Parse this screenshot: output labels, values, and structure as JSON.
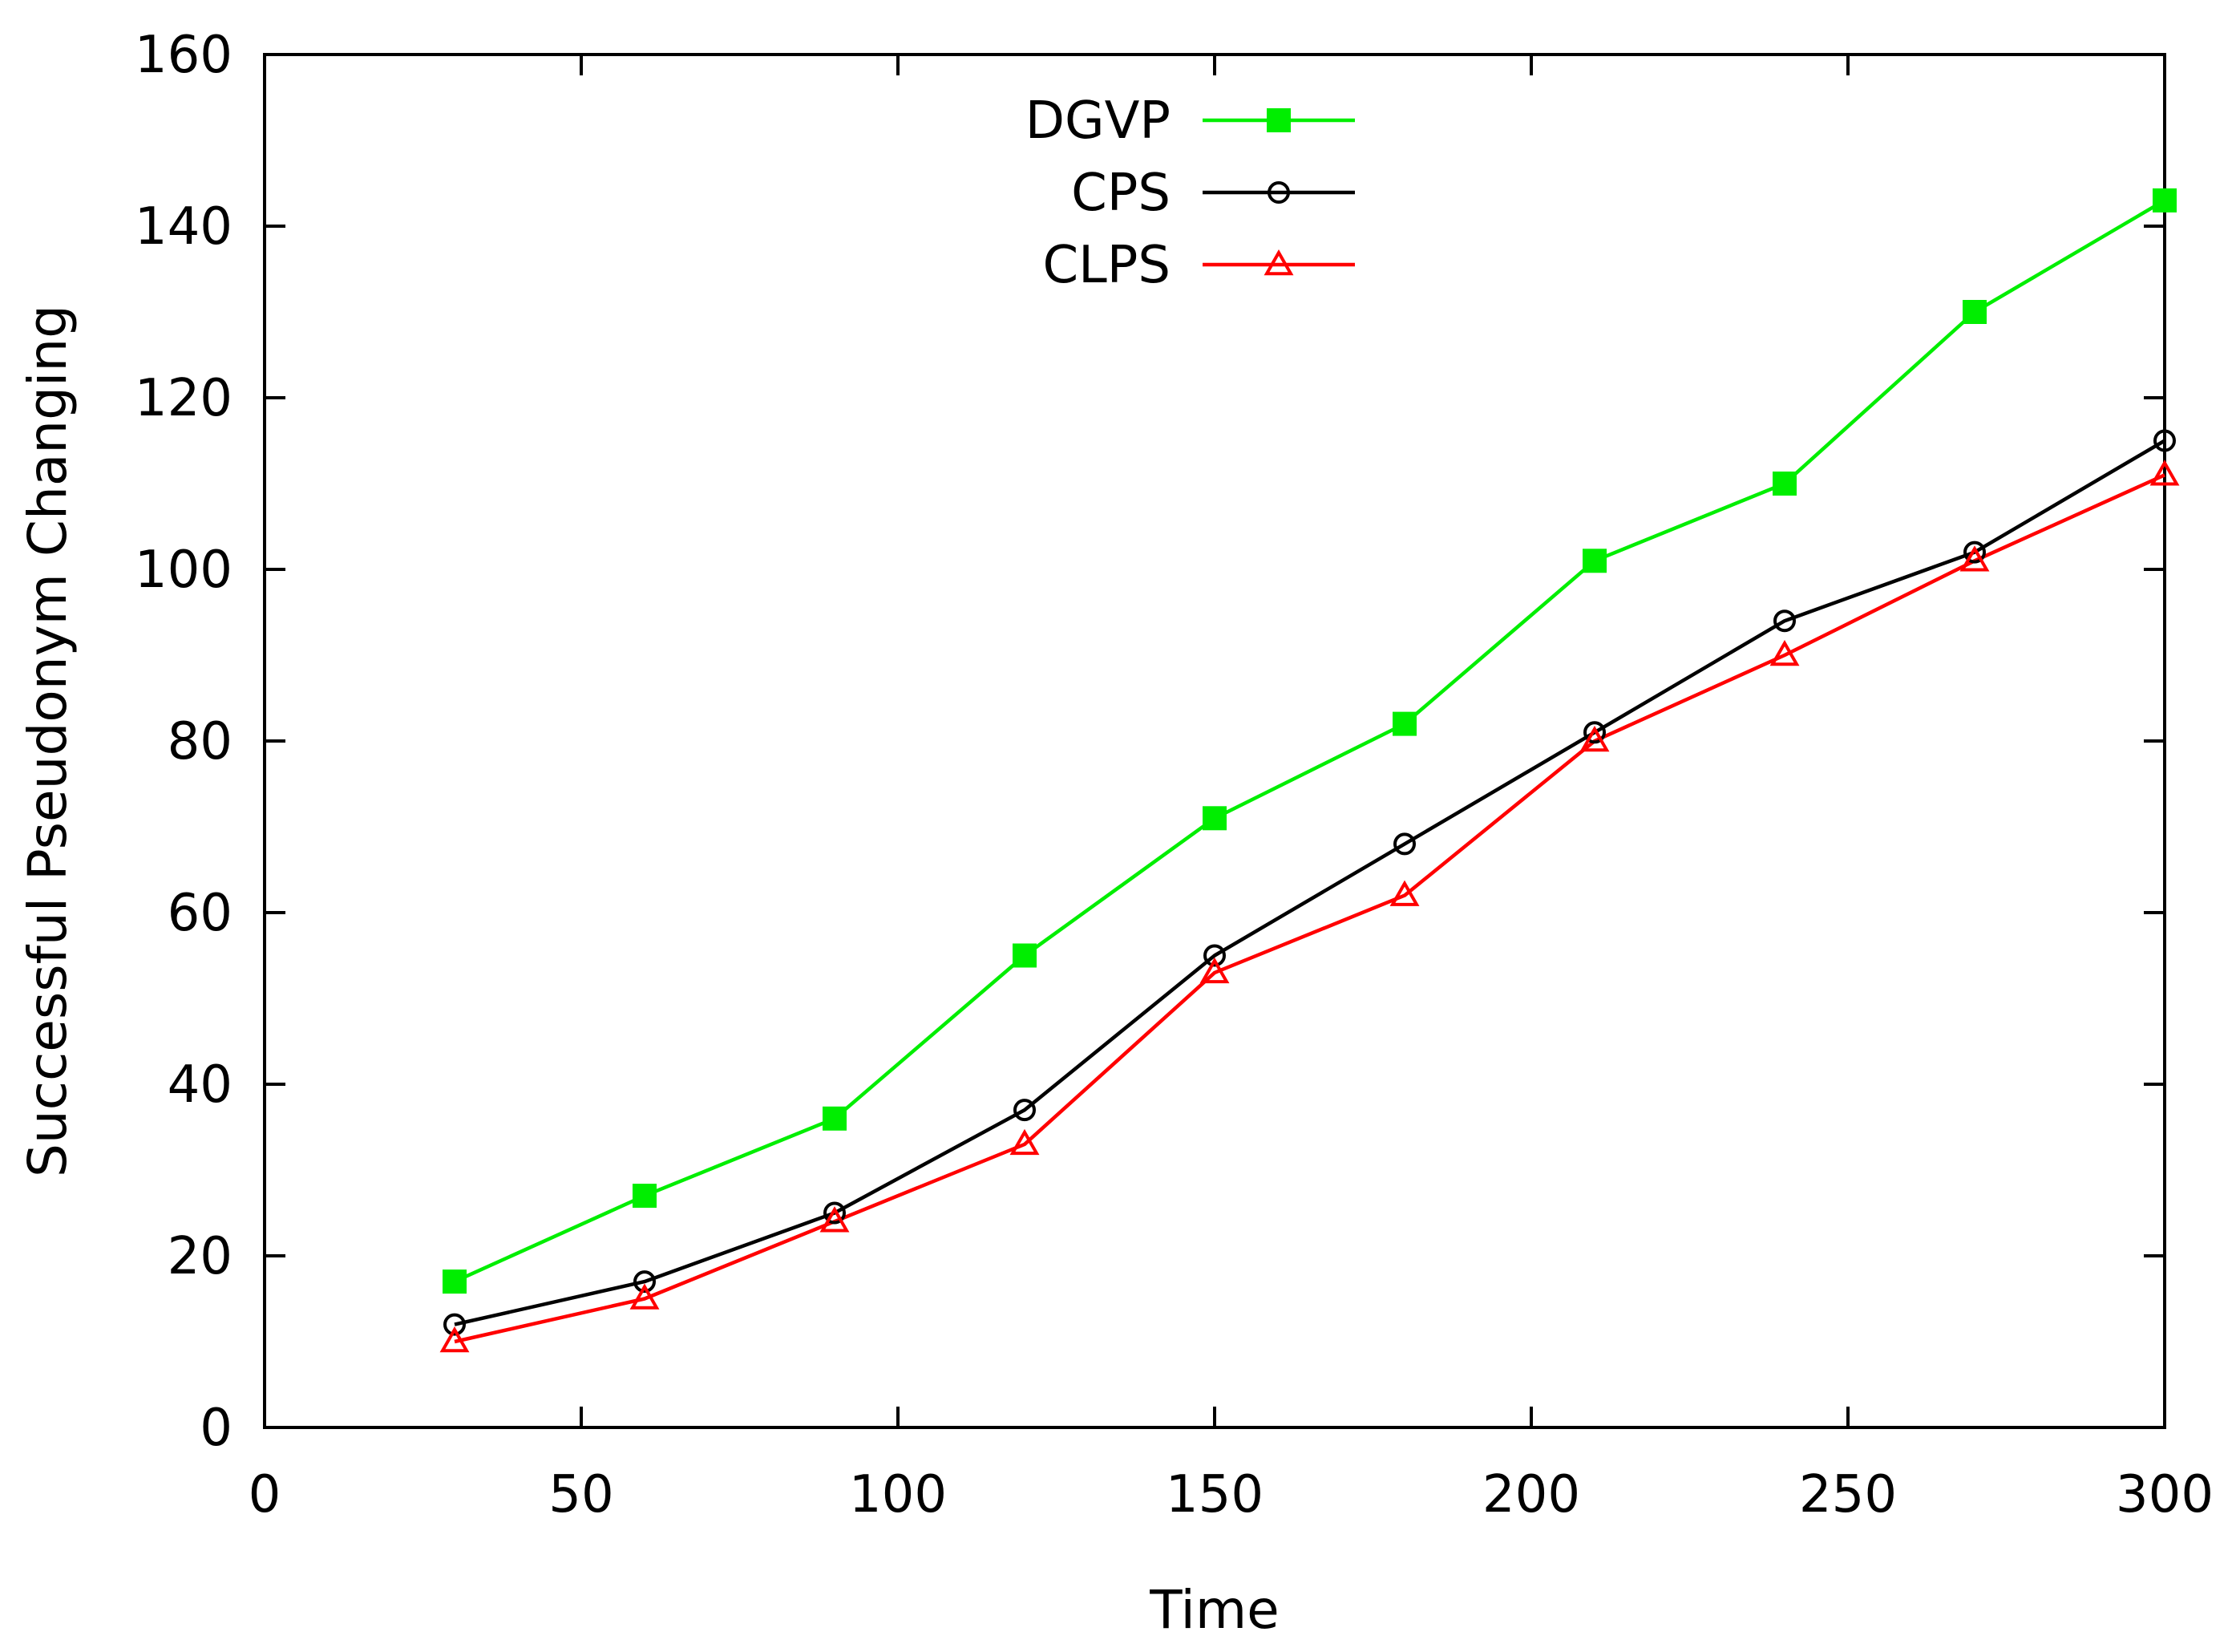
{
  "chart_data": {
    "type": "line",
    "title": "",
    "xlabel": "Time",
    "ylabel": "Successful Pseudonym Changing",
    "xlim": [
      0,
      300
    ],
    "ylim": [
      0,
      160
    ],
    "xticks": [
      0,
      50,
      100,
      150,
      200,
      250,
      300
    ],
    "yticks": [
      0,
      20,
      40,
      60,
      80,
      100,
      120,
      140,
      160
    ],
    "grid": false,
    "legend_position": "top-center",
    "x": [
      30,
      60,
      90,
      120,
      150,
      180,
      210,
      240,
      270,
      300
    ],
    "series": [
      {
        "name": "DGVP",
        "color": "#00ee00",
        "marker": "filled-square",
        "values": [
          17,
          27,
          36,
          55,
          71,
          82,
          101,
          110,
          130,
          143
        ]
      },
      {
        "name": "CPS",
        "color": "#000000",
        "marker": "open-circle",
        "values": [
          12,
          17,
          25,
          37,
          55,
          68,
          81,
          94,
          102,
          115
        ]
      },
      {
        "name": "CLPS",
        "color": "#ff0000",
        "marker": "open-triangle",
        "values": [
          10,
          15,
          24,
          33,
          53,
          62,
          80,
          90,
          101,
          111
        ]
      }
    ]
  }
}
